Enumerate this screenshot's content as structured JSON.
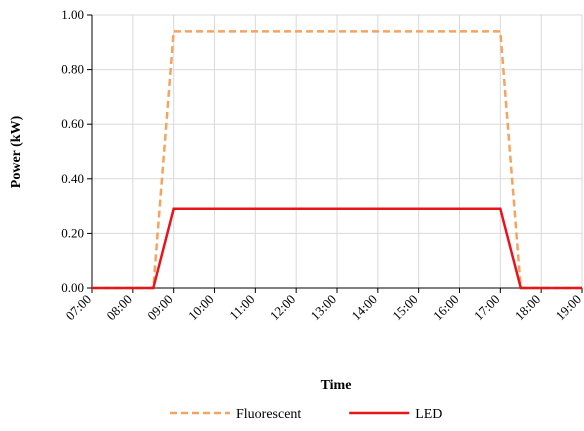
{
  "chart_data": {
    "type": "line",
    "xlabel": "Time",
    "ylabel": "Power (kW)",
    "x_ticks": [
      "07:00",
      "08:00",
      "09:00",
      "10:00",
      "11:00",
      "12:00",
      "13:00",
      "14:00",
      "15:00",
      "16:00",
      "17:00",
      "18:00",
      "19:00"
    ],
    "xlim": [
      "07:00",
      "19:00"
    ],
    "ylim": [
      0,
      1.0
    ],
    "y_ticks": [
      "0.00",
      "0.20",
      "0.40",
      "0.60",
      "0.80",
      "1.00"
    ],
    "grid": true,
    "legend_position": "bottom",
    "series": [
      {
        "name": "Fluorescent",
        "color": "#F4A460",
        "style": "dashed",
        "x": [
          "07:00",
          "08:30",
          "09:00",
          "17:00",
          "17:30",
          "19:00"
        ],
        "values": [
          0,
          0,
          0.94,
          0.94,
          0,
          0
        ]
      },
      {
        "name": "LED",
        "color": "#E8141B",
        "style": "solid",
        "x": [
          "07:00",
          "08:30",
          "09:00",
          "17:00",
          "17:30",
          "19:00"
        ],
        "values": [
          0,
          0,
          0.29,
          0.29,
          0,
          0
        ]
      }
    ]
  }
}
